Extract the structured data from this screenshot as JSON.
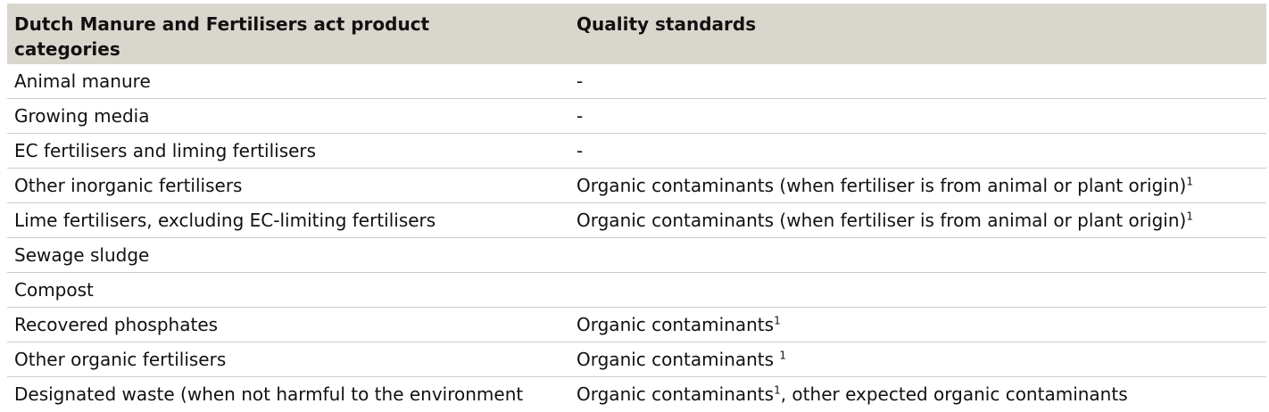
{
  "header": {
    "col1": "Dutch Manure and Fertilisers act product categories",
    "col2": "Quality standards"
  },
  "rows": [
    {
      "category": "Animal manure",
      "standard": "-",
      "sup": "",
      "after": ""
    },
    {
      "category": "Growing media",
      "standard": "-",
      "sup": "",
      "after": ""
    },
    {
      "category": "EC fertilisers and liming fertilisers",
      "standard": "-",
      "sup": "",
      "after": ""
    },
    {
      "category": "Other inorganic fertilisers",
      "standard": "Organic contaminants (when fertiliser is from animal or plant origin)",
      "sup": "1",
      "after": ""
    },
    {
      "category": "Lime fertilisers, excluding EC-limiting fertilisers",
      "standard": "Organic contaminants (when fertiliser is from animal or plant origin)",
      "sup": "1",
      "after": ""
    },
    {
      "category": "Sewage sludge",
      "standard": "",
      "sup": "",
      "after": ""
    },
    {
      "category": "Compost",
      "standard": "",
      "sup": "",
      "after": ""
    },
    {
      "category": "Recovered phosphates",
      "standard": "Organic contaminants",
      "sup": "1",
      "after": ""
    },
    {
      "category": "Other organic fertilisers",
      "standard": "Organic contaminants ",
      "sup": "1",
      "after": ""
    },
    {
      "category": "Designated waste (when not harmful to the environment",
      "standard": "Organic contaminants",
      "sup": "1",
      "after": ", other expected organic contaminants"
    }
  ]
}
